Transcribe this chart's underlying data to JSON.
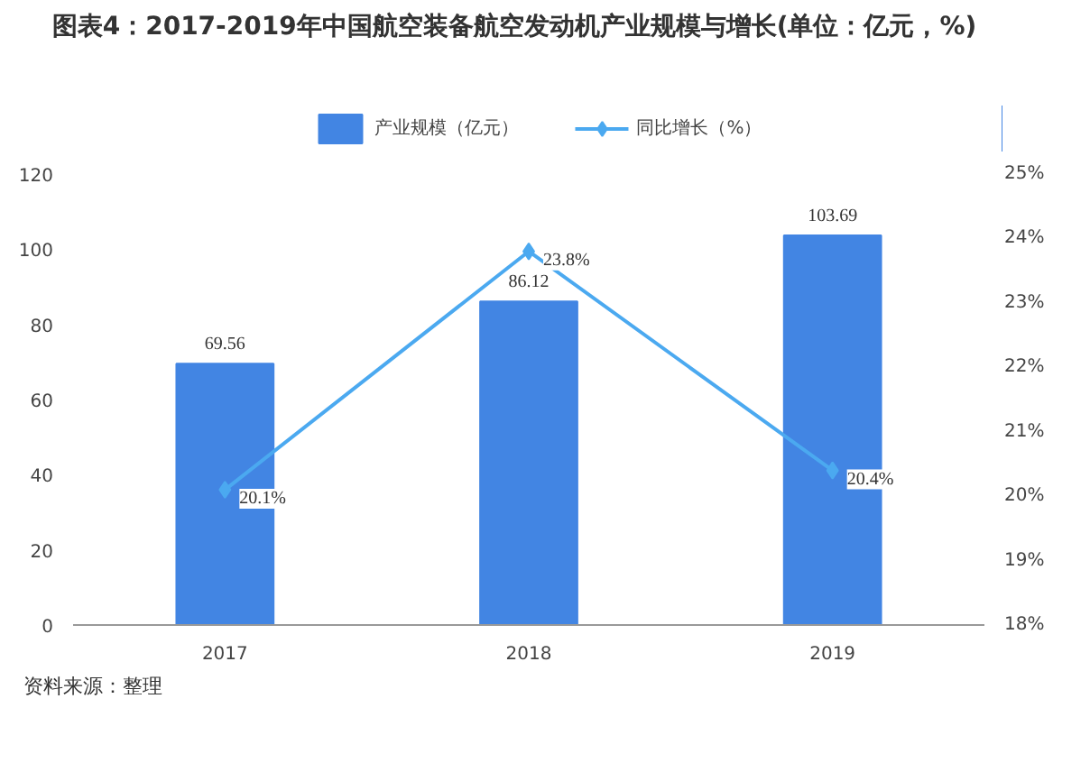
{
  "chart_data": {
    "type": "bar",
    "title": "图表4：2017-2019年中国航空装备航空发动机产业规模与增长(单位：亿元，%)",
    "categories": [
      "2017",
      "2018",
      "2019"
    ],
    "series": [
      {
        "name": "产业规模（亿元）",
        "color": "#4285e3",
        "values": [
          69.56,
          86.12,
          103.69
        ],
        "value_labels": [
          "69.56",
          "86.12",
          "103.69"
        ]
      },
      {
        "name": "同比增长（%）",
        "type": "line",
        "axis": "y2",
        "color": "#4ba9f0",
        "marker": "diamond",
        "values": [
          20.1,
          23.8,
          20.4
        ],
        "value_labels": [
          "20.1%",
          "23.8%",
          "20.4%"
        ]
      }
    ],
    "ylim": [
      0,
      120
    ],
    "yticks": [
      0,
      20,
      40,
      60,
      80,
      100,
      120
    ],
    "y2lim": [
      18,
      25
    ],
    "y2ticks": [
      {
        "value": 18,
        "label": "18%"
      },
      {
        "value": 19,
        "label": "19%"
      },
      {
        "value": 20,
        "label": "20%"
      },
      {
        "value": 21,
        "label": "21%"
      },
      {
        "value": 22,
        "label": "22%"
      },
      {
        "value": 23,
        "label": "23%"
      },
      {
        "value": 24,
        "label": "24%"
      },
      {
        "value": 25,
        "label": "25%"
      }
    ],
    "grid": false,
    "legend": "top",
    "annotations": [
      "资料来源：整理"
    ]
  }
}
